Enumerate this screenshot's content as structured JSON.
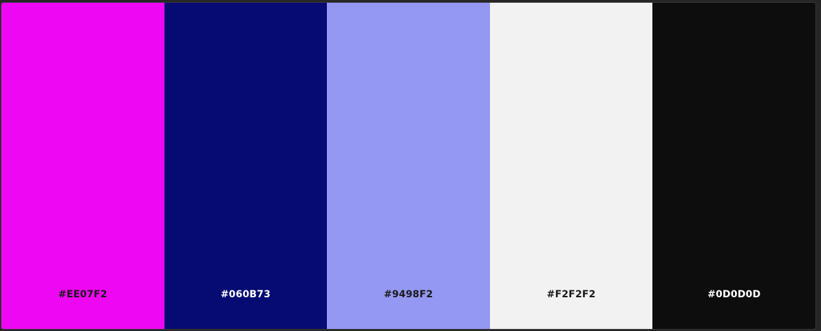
{
  "palette": {
    "swatches": [
      {
        "hex": "#EE07F2",
        "color": "#EE07F2",
        "text_color": "#1a1a1a"
      },
      {
        "hex": "#060B73",
        "color": "#060B73",
        "text_color": "#ffffff"
      },
      {
        "hex": "#9498F2",
        "color": "#9498F2",
        "text_color": "#1a1a1a"
      },
      {
        "hex": "#F2F2F2",
        "color": "#F2F2F2",
        "text_color": "#1a1a1a"
      },
      {
        "hex": "#0D0D0D",
        "color": "#0D0D0D",
        "text_color": "#ffffff"
      }
    ]
  }
}
